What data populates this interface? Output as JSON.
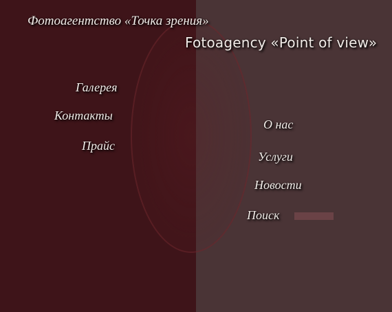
{
  "header": {
    "title_ru": "Фотоагентство «Точка зрения»",
    "title_en": "Fotoagency «Point of view»"
  },
  "nav_left": {
    "gallery": "Галерея",
    "contacts": "Контакты",
    "price": "Прайс"
  },
  "nav_right": {
    "about": "О нас",
    "services": "Услуги",
    "news": "Новости"
  },
  "search": {
    "label": "Поиск",
    "value": ""
  },
  "colors": {
    "left_panel": "#3e1419",
    "right_panel": "#4a3436",
    "text": "#f2ece8",
    "search_field": "#6a4246"
  }
}
